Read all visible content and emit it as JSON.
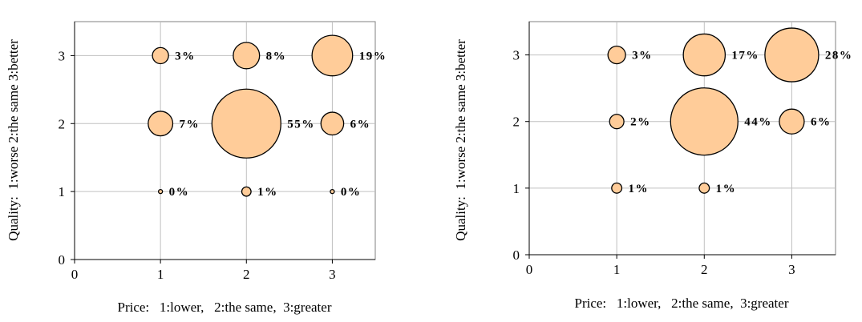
{
  "chart_data": [
    {
      "type": "bubble",
      "title": "",
      "xlabel": "Price:   1:lower,   2:the same,  3:greater",
      "ylabel": "Quality:  1:worse 2:the same 3:better",
      "xlim": [
        0,
        3.5
      ],
      "ylim": [
        0,
        3.5
      ],
      "x_ticks": [
        "0",
        "1",
        "2",
        "3"
      ],
      "y_ticks": [
        "0",
        "1",
        "2",
        "3"
      ],
      "grid": true,
      "bubble_color": "#FFCC99",
      "points": [
        {
          "x": 1,
          "y": 3,
          "value": 3,
          "label": "3%"
        },
        {
          "x": 2,
          "y": 3,
          "value": 8,
          "label": "8%"
        },
        {
          "x": 3,
          "y": 3,
          "value": 19,
          "label": "19%"
        },
        {
          "x": 1,
          "y": 2,
          "value": 7,
          "label": "7%"
        },
        {
          "x": 2,
          "y": 2,
          "value": 55,
          "label": "55%"
        },
        {
          "x": 3,
          "y": 2,
          "value": 6,
          "label": "6%"
        },
        {
          "x": 1,
          "y": 1,
          "value": 0,
          "label": "0%"
        },
        {
          "x": 2,
          "y": 1,
          "value": 1,
          "label": "1%"
        },
        {
          "x": 3,
          "y": 1,
          "value": 0,
          "label": "0%"
        }
      ]
    },
    {
      "type": "bubble",
      "title": "",
      "xlabel": "Price:   1:lower,   2:the same,  3:greater",
      "ylabel": "Quality:  1:worse 2:the same 3:better",
      "xlim": [
        0,
        3.5
      ],
      "ylim": [
        0,
        3.5
      ],
      "x_ticks": [
        "0",
        "1",
        "2",
        "3"
      ],
      "y_ticks": [
        "0",
        "1",
        "2",
        "3"
      ],
      "grid": true,
      "bubble_color": "#FFCC99",
      "points": [
        {
          "x": 1,
          "y": 3,
          "value": 3,
          "label": "3%"
        },
        {
          "x": 2,
          "y": 3,
          "value": 17,
          "label": "17%"
        },
        {
          "x": 3,
          "y": 3,
          "value": 28,
          "label": "28%"
        },
        {
          "x": 1,
          "y": 2,
          "value": 2,
          "label": "2%"
        },
        {
          "x": 2,
          "y": 2,
          "value": 44,
          "label": "44%"
        },
        {
          "x": 3,
          "y": 2,
          "value": 6,
          "label": "6%"
        },
        {
          "x": 1,
          "y": 1,
          "value": 1,
          "label": "1%"
        },
        {
          "x": 2,
          "y": 1,
          "value": 1,
          "label": "1%"
        }
      ]
    }
  ]
}
